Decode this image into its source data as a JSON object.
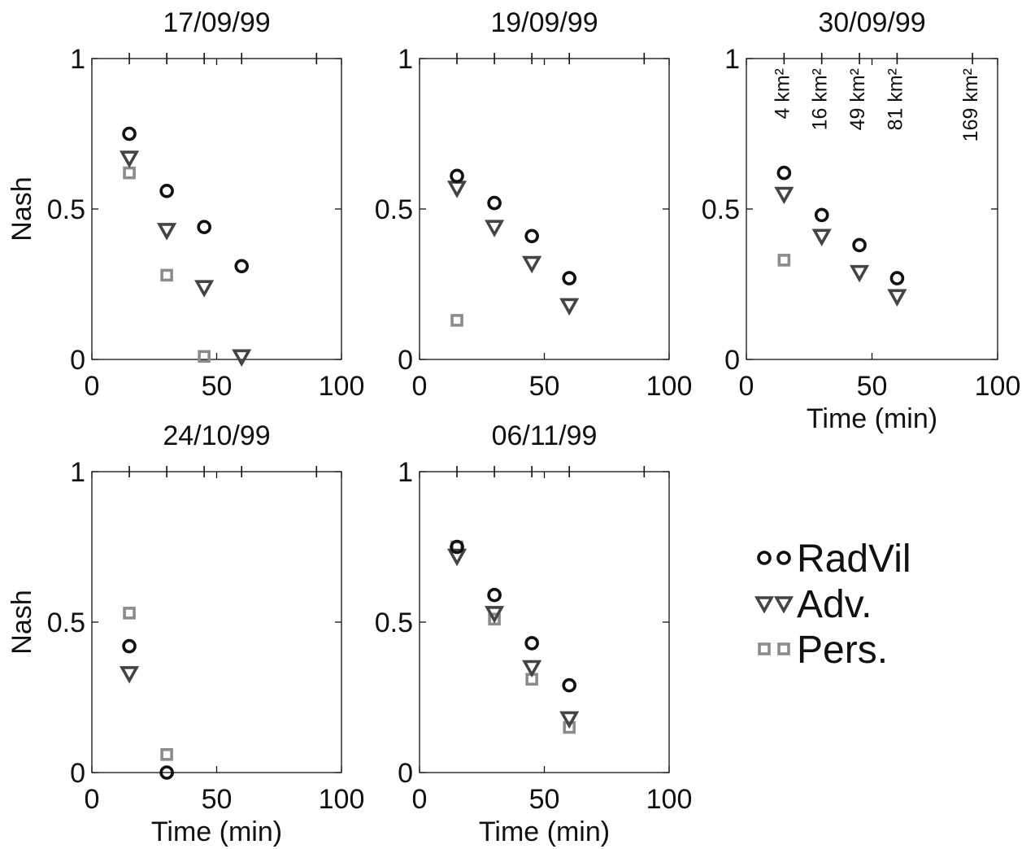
{
  "chart_data": [
    {
      "type": "scatter",
      "title": "17/09/99",
      "ylabel": "Nash",
      "xlabel": "",
      "xlim": [
        0,
        100
      ],
      "ylim": [
        0,
        1
      ],
      "xticks": [
        0,
        50,
        100
      ],
      "yticks": [
        0,
        0.5,
        1
      ],
      "ytick_labels": [
        "0",
        "0.5",
        "1"
      ],
      "grid": false,
      "series": [
        {
          "name": "RadVil",
          "x": [
            15,
            30,
            45,
            60
          ],
          "y": [
            0.75,
            0.56,
            0.44,
            0.31
          ]
        },
        {
          "name": "Adv.",
          "x": [
            15,
            30,
            45,
            60
          ],
          "y": [
            0.67,
            0.43,
            0.24,
            0.01
          ]
        },
        {
          "name": "Pers.",
          "x": [
            15,
            30,
            45
          ],
          "y": [
            0.62,
            0.28,
            0.01
          ]
        }
      ]
    },
    {
      "type": "scatter",
      "title": "19/09/99",
      "ylabel": "",
      "xlabel": "",
      "xlim": [
        0,
        100
      ],
      "ylim": [
        0,
        1
      ],
      "xticks": [
        0,
        50,
        100
      ],
      "yticks": [
        0,
        0.5,
        1
      ],
      "ytick_labels": [
        "0",
        "0.5",
        "1"
      ],
      "grid": false,
      "series": [
        {
          "name": "RadVil",
          "x": [
            15,
            30,
            45,
            60
          ],
          "y": [
            0.61,
            0.52,
            0.41,
            0.27
          ]
        },
        {
          "name": "Adv.",
          "x": [
            15,
            30,
            45,
            60
          ],
          "y": [
            0.57,
            0.44,
            0.32,
            0.18
          ]
        },
        {
          "name": "Pers.",
          "x": [
            15
          ],
          "y": [
            0.13
          ]
        }
      ]
    },
    {
      "type": "scatter",
      "title": "30/09/99",
      "ylabel": "",
      "xlabel": "Time (min)",
      "xlim": [
        0,
        100
      ],
      "ylim": [
        0,
        1
      ],
      "xticks": [
        0,
        50,
        100
      ],
      "yticks": [
        0,
        0.5,
        1
      ],
      "ytick_labels": [
        "0",
        "0.5",
        "1"
      ],
      "grid": false,
      "annotations": [
        {
          "x": 15,
          "text": "4 km²"
        },
        {
          "x": 30,
          "text": "16 km²"
        },
        {
          "x": 45,
          "text": "49 km²"
        },
        {
          "x": 60,
          "text": "81 km²"
        },
        {
          "x": 90,
          "text": "169 km²"
        }
      ],
      "series": [
        {
          "name": "RadVil",
          "x": [
            15,
            30,
            45,
            60
          ],
          "y": [
            0.62,
            0.48,
            0.38,
            0.27
          ]
        },
        {
          "name": "Adv.",
          "x": [
            15,
            30,
            45,
            60
          ],
          "y": [
            0.55,
            0.41,
            0.29,
            0.21
          ]
        },
        {
          "name": "Pers.",
          "x": [
            15
          ],
          "y": [
            0.33
          ]
        }
      ]
    },
    {
      "type": "scatter",
      "title": "24/10/99",
      "ylabel": "Nash",
      "xlabel": "Time (min)",
      "xlim": [
        0,
        100
      ],
      "ylim": [
        0,
        1
      ],
      "xticks": [
        0,
        50,
        100
      ],
      "yticks": [
        0,
        0.5,
        1
      ],
      "ytick_labels": [
        "0",
        "0.5",
        "1"
      ],
      "grid": false,
      "series": [
        {
          "name": "RadVil",
          "x": [
            15,
            30
          ],
          "y": [
            0.42,
            0.0
          ]
        },
        {
          "name": "Adv.",
          "x": [
            15
          ],
          "y": [
            0.33
          ]
        },
        {
          "name": "Pers.",
          "x": [
            15,
            30
          ],
          "y": [
            0.53,
            0.06
          ]
        }
      ]
    },
    {
      "type": "scatter",
      "title": "06/11/99",
      "ylabel": "",
      "xlabel": "Time (min)",
      "xlim": [
        0,
        100
      ],
      "ylim": [
        0,
        1
      ],
      "xticks": [
        0,
        50,
        100
      ],
      "yticks": [
        0,
        0.5,
        1
      ],
      "ytick_labels": [
        "0",
        "0.5",
        "1"
      ],
      "grid": false,
      "series": [
        {
          "name": "RadVil",
          "x": [
            15,
            30,
            45,
            60
          ],
          "y": [
            0.75,
            0.59,
            0.43,
            0.29
          ]
        },
        {
          "name": "Adv.",
          "x": [
            15,
            30,
            45,
            60
          ],
          "y": [
            0.72,
            0.53,
            0.35,
            0.18
          ]
        },
        {
          "name": "Pers.",
          "x": [
            15,
            30,
            45,
            60
          ],
          "y": [
            0.75,
            0.51,
            0.31,
            0.15
          ]
        }
      ]
    }
  ],
  "legend": {
    "placement": "bottom-right",
    "items": [
      {
        "label": "RadVil",
        "marker": "circle",
        "color": "#111111"
      },
      {
        "label": "Adv.",
        "marker": "triangle-down",
        "color": "#444444"
      },
      {
        "label": "Pers.",
        "marker": "square",
        "color": "#8c8c8c"
      }
    ]
  },
  "colors": {
    "RadVil": "#111111",
    "Adv.": "#444444",
    "Pers.": "#8c8c8c",
    "axis": "#111111"
  }
}
